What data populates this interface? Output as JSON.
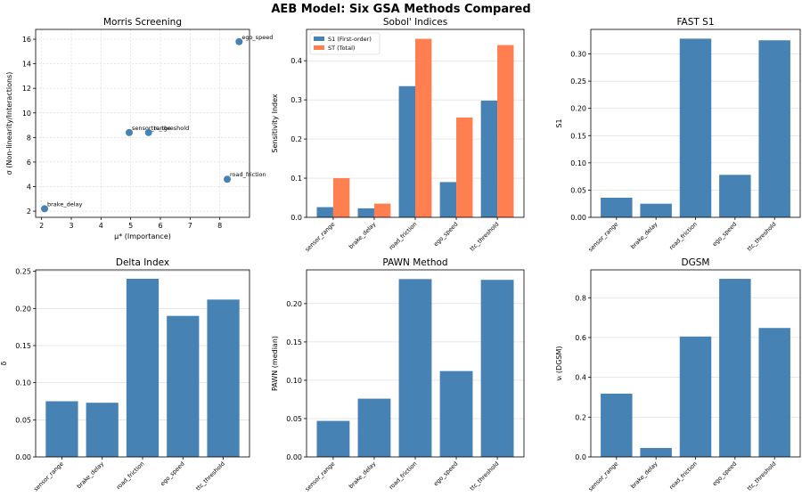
{
  "title": "AEB Model: Six GSA Methods Compared",
  "colors": {
    "bar": "#4682b4",
    "total": "#ff7f50",
    "point": "#4682b4"
  },
  "chart_data": [
    {
      "type": "scatter",
      "title": "Morris Screening",
      "xlabel": "μ* (Importance)",
      "ylabel": "σ (Non-linearity/Interactions)",
      "xlim": [
        1.8,
        9.0
      ],
      "ylim": [
        1.5,
        16.8
      ],
      "xticks": [
        2,
        3,
        4,
        5,
        6,
        7,
        8
      ],
      "yticks": [
        2,
        4,
        6,
        8,
        10,
        12,
        14,
        16
      ],
      "grid": true,
      "points": [
        {
          "label": "sensor_range",
          "x": 4.95,
          "y": 8.4
        },
        {
          "label": "brake_delay",
          "x": 2.1,
          "y": 2.2
        },
        {
          "label": "road_friction",
          "x": 8.25,
          "y": 4.6
        },
        {
          "label": "ego_speed",
          "x": 8.65,
          "y": 15.8
        },
        {
          "label": "ttc_threshold",
          "x": 5.6,
          "y": 8.4
        }
      ]
    },
    {
      "type": "bar",
      "title": "Sobol' Indices",
      "xlabel": "",
      "ylabel": "Sensitivity Index",
      "categories": [
        "sensor_range",
        "brake_delay",
        "road_friction",
        "ego_speed",
        "ttc_threshold"
      ],
      "series": [
        {
          "name": "S1 (First-order)",
          "values": [
            0.026,
            0.023,
            0.335,
            0.09,
            0.298
          ]
        },
        {
          "name": "ST (Total)",
          "values": [
            0.1,
            0.035,
            0.456,
            0.255,
            0.44
          ]
        }
      ],
      "ylim": [
        0,
        0.48
      ],
      "yticks": [
        0.0,
        0.1,
        0.2,
        0.3,
        0.4
      ],
      "legend": "top-left",
      "grid": true
    },
    {
      "type": "bar",
      "title": "FAST S1",
      "xlabel": "",
      "ylabel": "S1",
      "categories": [
        "sensor_range",
        "brake_delay",
        "road_friction",
        "ego_speed",
        "ttc_threshold"
      ],
      "values": [
        0.036,
        0.025,
        0.328,
        0.078,
        0.325
      ],
      "ylim": [
        0,
        0.345
      ],
      "yticks": [
        0.0,
        0.05,
        0.1,
        0.15,
        0.2,
        0.25,
        0.3
      ],
      "grid": true
    },
    {
      "type": "bar",
      "title": "Delta Index",
      "xlabel": "",
      "ylabel": "δ",
      "categories": [
        "sensor_range",
        "brake_delay",
        "road_friction",
        "ego_speed",
        "ttc_threshold"
      ],
      "values": [
        0.075,
        0.073,
        0.24,
        0.19,
        0.212
      ],
      "ylim": [
        0,
        0.252
      ],
      "yticks": [
        0.0,
        0.05,
        0.1,
        0.15,
        0.2,
        0.25
      ],
      "grid": true
    },
    {
      "type": "bar",
      "title": "PAWN Method",
      "xlabel": "",
      "ylabel": "PAWN (median)",
      "categories": [
        "sensor_range",
        "brake_delay",
        "road_friction",
        "ego_speed",
        "ttc_threshold"
      ],
      "values": [
        0.047,
        0.076,
        0.232,
        0.112,
        0.231
      ],
      "ylim": [
        0,
        0.244
      ],
      "yticks": [
        0.0,
        0.05,
        0.1,
        0.15,
        0.2
      ],
      "grid": true
    },
    {
      "type": "bar",
      "title": "DGSM",
      "xlabel": "",
      "ylabel": "νᵢ (DGSM)",
      "categories": [
        "sensor_range",
        "brake_delay",
        "road_friction",
        "ego_speed",
        "ttc_threshold"
      ],
      "values": [
        0.318,
        0.045,
        0.605,
        0.895,
        0.648
      ],
      "ylim": [
        0,
        0.94
      ],
      "yticks": [
        0.0,
        0.2,
        0.4,
        0.6,
        0.8
      ],
      "grid": true
    }
  ]
}
